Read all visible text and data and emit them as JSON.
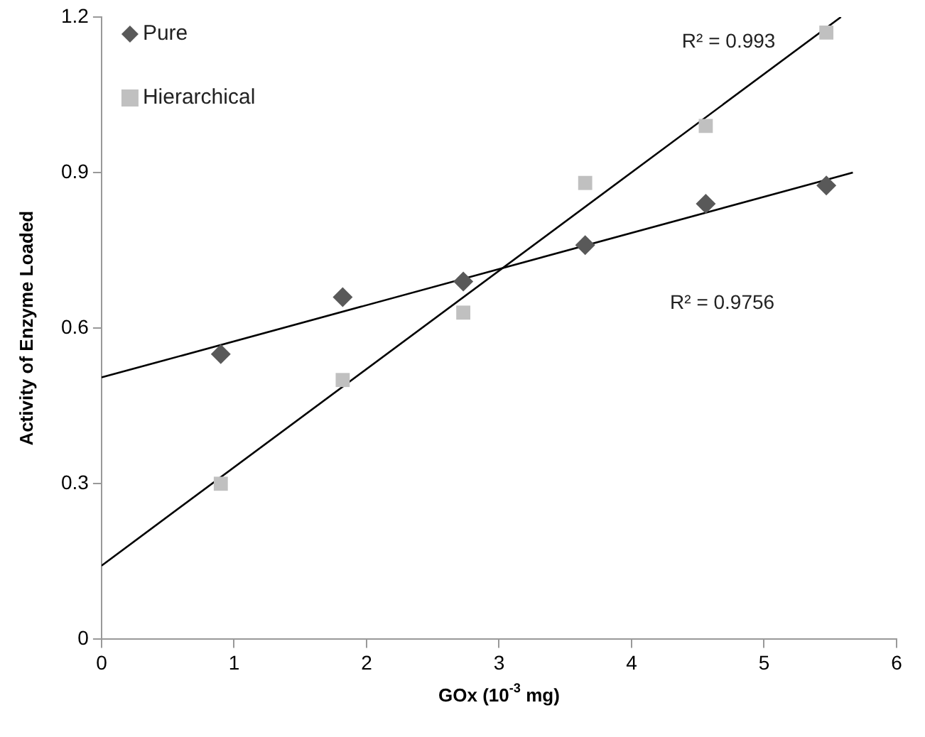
{
  "chart_data": {
    "type": "scatter",
    "xlabel": "GOx (10$^{-3}$ mg)",
    "ylabel": "Activity of Enzyme Loaded",
    "xlim": [
      0,
      6
    ],
    "xticks": [
      0,
      1,
      2,
      3,
      4,
      5,
      6
    ],
    "ylim": [
      0,
      1.2
    ],
    "yticks": [
      0,
      0.3,
      0.6,
      0.9,
      1.2
    ],
    "grid": false,
    "legend": "top left",
    "series": [
      {
        "name": "Pure",
        "color": "#595959",
        "marker": "diamond",
        "x": [
          0.9,
          1.82,
          2.73,
          3.65,
          4.56,
          5.47
        ],
        "values": [
          0.55,
          0.66,
          0.69,
          0.76,
          0.84,
          0.875
        ]
      },
      {
        "name": "Hierarchical",
        "color": "#c0c0c0",
        "marker": "square",
        "x": [
          0.9,
          1.82,
          2.73,
          3.65,
          4.56,
          5.47
        ],
        "values": [
          0.3,
          0.5,
          0.63,
          0.88,
          0.99,
          1.17
        ]
      },
      {
        "type": "line",
        "color": "#000000",
        "marker": "none",
        "x": [
          0,
          5.67
        ],
        "values": [
          0.505,
          0.9
        ]
      },
      {
        "type": "line",
        "color": "#000000",
        "marker": "none",
        "x": [
          0,
          5.58
        ],
        "values": [
          0.142,
          1.2
        ]
      }
    ],
    "annotations": [
      "R² = 0.993",
      "R² = 0.9756"
    ]
  }
}
